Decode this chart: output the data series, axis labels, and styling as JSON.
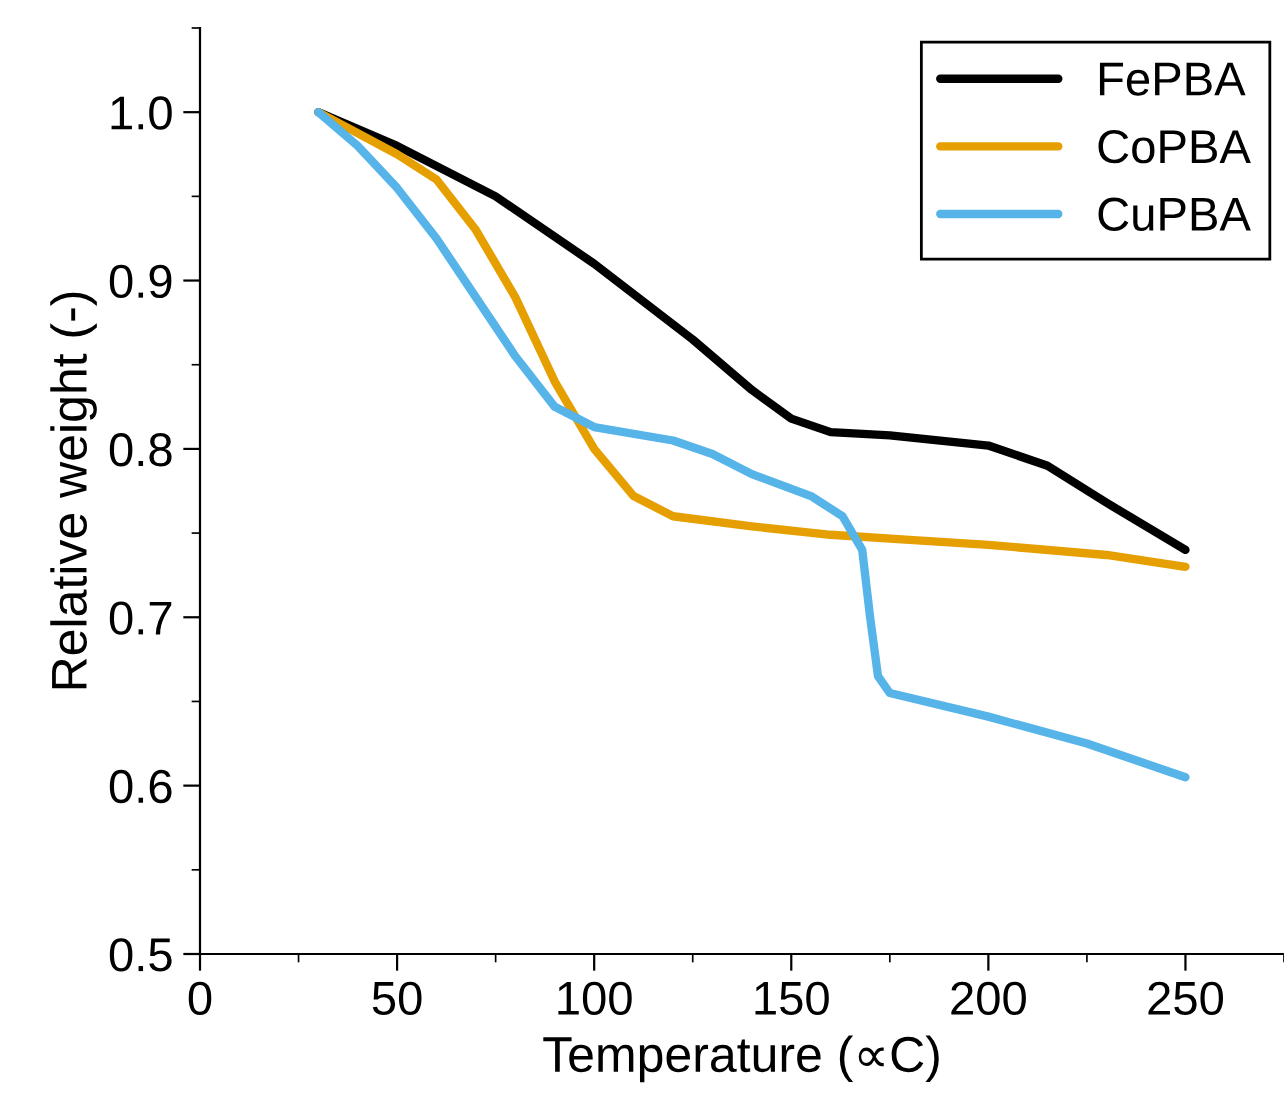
{
  "chart_data": {
    "type": "line",
    "xlabel": "Temperature (∝C)",
    "ylabel": "Relative weight (-)",
    "xlim": [
      0,
      275
    ],
    "xticks": [
      0,
      50,
      100,
      150,
      200,
      250
    ],
    "ylim": [
      0.5,
      1.05
    ],
    "yticks": [
      {
        "value": 0.5,
        "label": "0.5"
      },
      {
        "value": 0.6,
        "label": "0.6"
      },
      {
        "value": 0.7,
        "label": "0.7"
      },
      {
        "value": 0.8,
        "label": "0.8"
      },
      {
        "value": 0.9,
        "label": "0.9"
      },
      {
        "value": 1.0,
        "label": "1.0"
      }
    ],
    "legend": "top right",
    "grid": false,
    "series": [
      {
        "name": "FePBA",
        "color": "#000000",
        "x": [
          30,
          50,
          75,
          100,
          125,
          140,
          150,
          160,
          175,
          200,
          215,
          230,
          250
        ],
        "values": [
          1.0,
          0.98,
          0.95,
          0.91,
          0.865,
          0.835,
          0.818,
          0.81,
          0.808,
          0.802,
          0.79,
          0.768,
          0.74
        ]
      },
      {
        "name": "CoPBA",
        "color": "#e69f00",
        "x": [
          30,
          50,
          60,
          70,
          80,
          90,
          100,
          110,
          120,
          140,
          160,
          180,
          200,
          230,
          250
        ],
        "values": [
          1.0,
          0.975,
          0.96,
          0.93,
          0.89,
          0.84,
          0.8,
          0.772,
          0.76,
          0.754,
          0.749,
          0.746,
          0.743,
          0.737,
          0.73
        ]
      },
      {
        "name": "CuPBA",
        "color": "#56b4e9",
        "x": [
          30,
          40,
          50,
          60,
          70,
          80,
          90,
          100,
          120,
          130,
          140,
          155,
          163,
          168,
          170,
          172,
          175,
          200,
          225,
          250
        ],
        "values": [
          1.0,
          0.98,
          0.955,
          0.925,
          0.89,
          0.855,
          0.825,
          0.813,
          0.805,
          0.797,
          0.785,
          0.772,
          0.76,
          0.74,
          0.7,
          0.665,
          0.655,
          0.641,
          0.625,
          0.605
        ]
      }
    ]
  }
}
